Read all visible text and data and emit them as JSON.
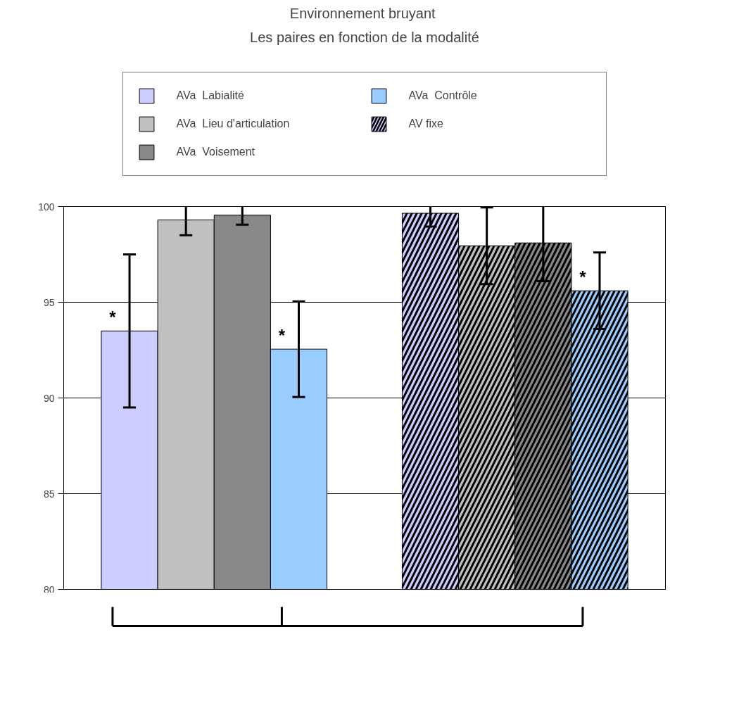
{
  "chart_data": {
    "type": "bar",
    "title": "Environnement  bruyant",
    "subtitle": "Les paires en fonction de la modalité",
    "categories": [
      null,
      null
    ],
    "series": [
      {
        "name": "AVa  Labialité",
        "color": "#ccccff",
        "values": [
          93.5,
          null
        ],
        "errors": [
          4.0,
          null
        ],
        "value_labels": [
          "*",
          null
        ]
      },
      {
        "name": "AVa  Lieu d'articulation",
        "color": "#c0c0c0",
        "values": [
          99.3,
          null
        ],
        "errors": [
          0.8,
          null
        ]
      },
      {
        "name": "AVa  Voisement",
        "color": "#888888",
        "values": [
          99.55,
          null
        ],
        "errors": [
          0.5,
          null
        ]
      },
      {
        "name": "AVa  Contrôle",
        "color": "#99ccff",
        "values": [
          92.55,
          null
        ],
        "errors": [
          2.5,
          null
        ],
        "value_labels": [
          "*",
          null
        ]
      },
      {
        "name": "AV fixe",
        "color": "#ccccff",
        "values": [
          null,
          99.65
        ],
        "errors": [
          null,
          0.7
        ]
      },
      {
        "color": "#c0c0c0",
        "values": [
          null,
          97.95
        ],
        "errors": [
          null,
          2.0
        ]
      },
      {
        "color": "#888888",
        "values": [
          null,
          98.1
        ],
        "errors": [
          null,
          2.0
        ]
      },
      {
        "color": "#99ccff",
        "values": [
          null,
          95.6
        ],
        "errors": [
          null,
          2.0
        ],
        "value_labels": [
          null,
          "*"
        ]
      }
    ],
    "ylim": [
      80,
      100
    ],
    "yticks": [
      80,
      85,
      90,
      95,
      100
    ],
    "grid": "y",
    "legend": "top",
    "tick_labels": "y"
  }
}
